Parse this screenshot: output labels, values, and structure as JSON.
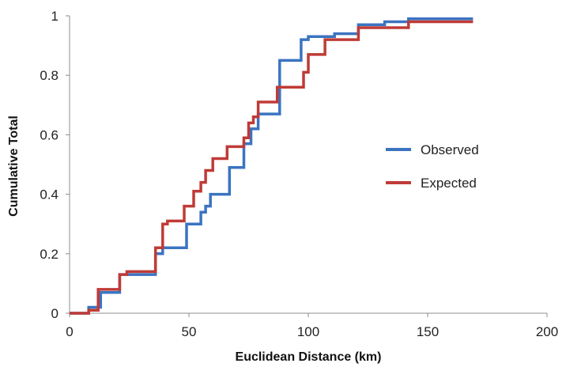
{
  "chart_data": {
    "type": "line",
    "title": "",
    "xlabel": "Euclidean Distance (km)",
    "ylabel": "Cumulative Total",
    "xlim": [
      0,
      200
    ],
    "ylim": [
      0,
      1
    ],
    "xticks": [
      "0",
      "50",
      "100",
      "150",
      "200"
    ],
    "yticks": [
      "0",
      "0.2",
      "0.4",
      "0.6",
      "0.8",
      "1"
    ],
    "grid": false,
    "legend_position": "right",
    "step": true,
    "series": [
      {
        "name": "Observed",
        "color": "#3b74c1",
        "x": [
          0,
          8,
          8,
          13,
          13,
          21,
          21,
          36,
          36,
          39,
          39,
          49,
          49,
          55,
          55,
          57,
          57,
          59,
          59,
          67,
          67,
          73,
          73,
          76,
          76,
          79,
          79,
          88,
          88,
          97,
          97,
          100,
          100,
          111,
          111,
          121,
          121,
          132,
          132,
          142,
          142,
          169
        ],
        "y": [
          0,
          0,
          0.02,
          0.02,
          0.07,
          0.07,
          0.13,
          0.13,
          0.2,
          0.2,
          0.22,
          0.22,
          0.3,
          0.3,
          0.34,
          0.34,
          0.36,
          0.36,
          0.4,
          0.4,
          0.49,
          0.49,
          0.57,
          0.57,
          0.62,
          0.62,
          0.67,
          0.67,
          0.85,
          0.85,
          0.92,
          0.92,
          0.93,
          0.93,
          0.94,
          0.94,
          0.97,
          0.97,
          0.98,
          0.98,
          0.99,
          0.99
        ]
      },
      {
        "name": "Expected",
        "color": "#bf3b36",
        "x": [
          0,
          8,
          8,
          12,
          12,
          21,
          21,
          24,
          24,
          36,
          36,
          39,
          39,
          41,
          41,
          48,
          48,
          52,
          52,
          55,
          55,
          57,
          57,
          60,
          60,
          66,
          66,
          73,
          73,
          75,
          75,
          77,
          77,
          79,
          79,
          87,
          87,
          98,
          98,
          100,
          100,
          107,
          107,
          121,
          121,
          142,
          142,
          169
        ],
        "y": [
          0,
          0,
          0.01,
          0.01,
          0.08,
          0.08,
          0.13,
          0.13,
          0.14,
          0.14,
          0.22,
          0.22,
          0.3,
          0.3,
          0.31,
          0.31,
          0.36,
          0.36,
          0.41,
          0.41,
          0.44,
          0.44,
          0.48,
          0.48,
          0.52,
          0.52,
          0.56,
          0.56,
          0.59,
          0.59,
          0.64,
          0.64,
          0.66,
          0.66,
          0.71,
          0.71,
          0.76,
          0.76,
          0.81,
          0.81,
          0.87,
          0.87,
          0.92,
          0.92,
          0.96,
          0.96,
          0.98,
          0.98
        ]
      }
    ]
  }
}
